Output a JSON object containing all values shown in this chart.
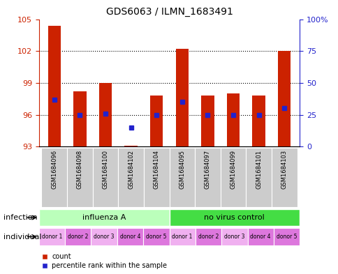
{
  "title": "GDS6063 / ILMN_1683491",
  "samples": [
    "GSM1684096",
    "GSM1684098",
    "GSM1684100",
    "GSM1684102",
    "GSM1684104",
    "GSM1684095",
    "GSM1684097",
    "GSM1684099",
    "GSM1684101",
    "GSM1684103"
  ],
  "count_values": [
    104.4,
    98.2,
    99.0,
    93.1,
    97.8,
    102.2,
    97.8,
    98.0,
    97.8,
    102.0
  ],
  "percentile_values": [
    37,
    25,
    26,
    15,
    25,
    35,
    25,
    25,
    25,
    30
  ],
  "ylim_left": [
    93,
    105
  ],
  "ylim_right": [
    0,
    100
  ],
  "yticks_left": [
    93,
    96,
    99,
    102,
    105
  ],
  "yticks_right": [
    0,
    25,
    50,
    75,
    100
  ],
  "ytick_right_labels": [
    "0",
    "25",
    "50",
    "75",
    "100%"
  ],
  "bar_color": "#cc2200",
  "dot_color": "#2222cc",
  "infection_groups": [
    {
      "label": "influenza A",
      "start": 0,
      "end": 5,
      "color": "#bbffbb"
    },
    {
      "label": "no virus control",
      "start": 5,
      "end": 10,
      "color": "#44dd44"
    }
  ],
  "individual_labels": [
    "donor 1",
    "donor 2",
    "donor 3",
    "donor 4",
    "donor 5",
    "donor 1",
    "donor 2",
    "donor 3",
    "donor 4",
    "donor 5"
  ],
  "ind_colors": [
    "#f0b0f0",
    "#dd77dd",
    "#f0b0f0",
    "#dd77dd",
    "#dd77dd",
    "#f0b0f0",
    "#dd77dd",
    "#f0b0f0",
    "#dd77dd",
    "#dd77dd"
  ],
  "infection_row_label": "infection",
  "individual_row_label": "individual",
  "legend_count_label": "count",
  "legend_percentile_label": "percentile rank within the sample",
  "xaxis_bg_color": "#cccccc"
}
